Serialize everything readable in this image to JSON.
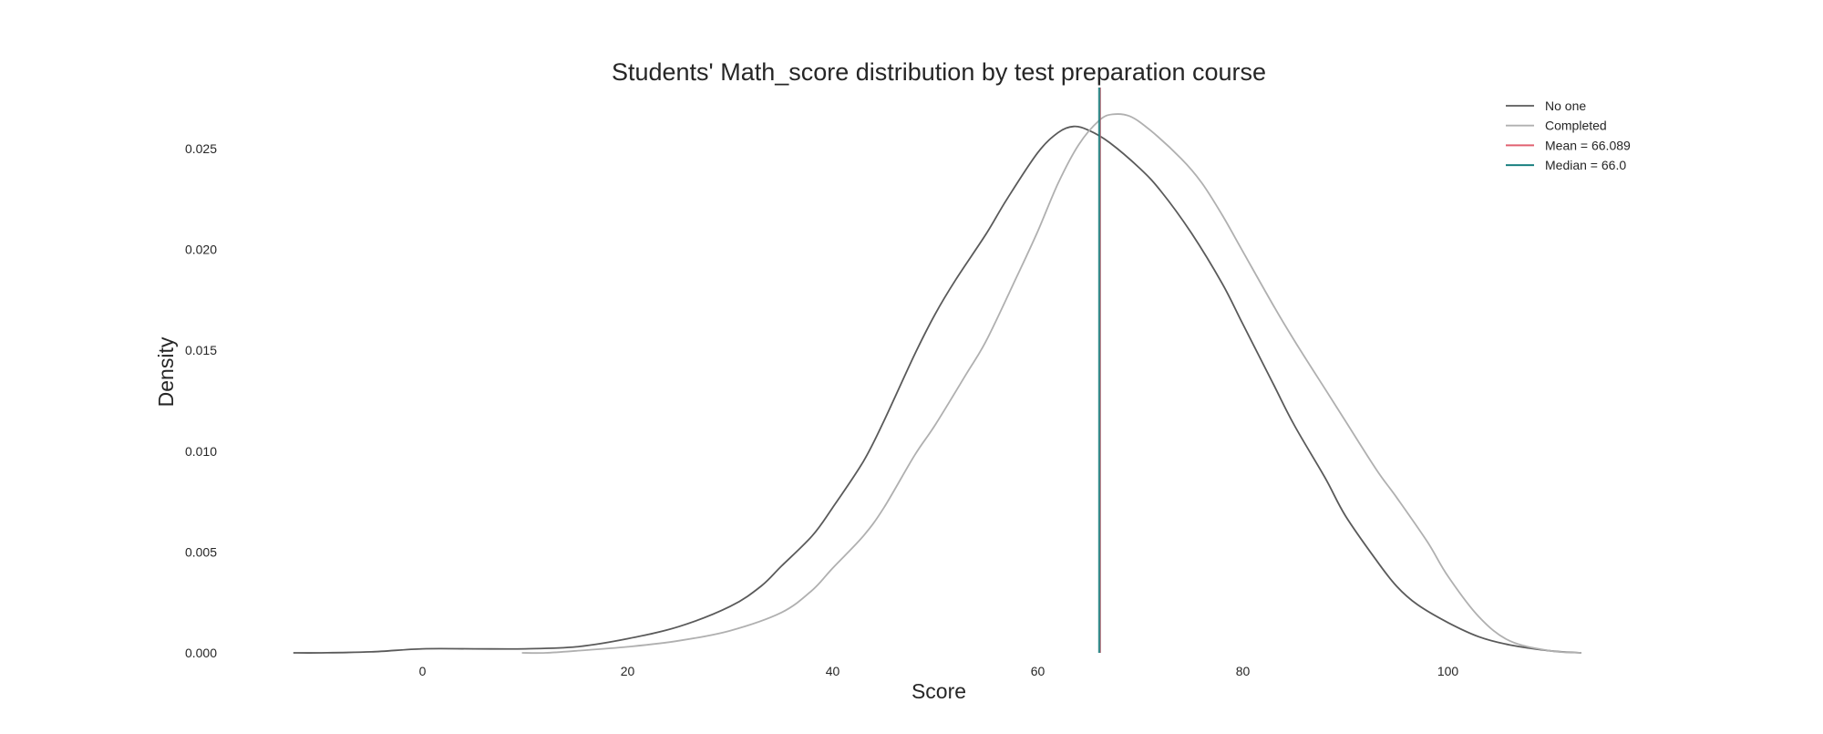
{
  "chart_data": {
    "type": "line",
    "title": "Students' Math_score distribution by test preparation course",
    "xlabel": "Score",
    "ylabel": "Density",
    "xlim": [
      -13,
      113
    ],
    "ylim": [
      0,
      0.028
    ],
    "x_ticks": [
      0,
      20,
      40,
      60,
      80,
      100
    ],
    "x_tick_labels": [
      "0",
      "20",
      "40",
      "60",
      "80",
      "100"
    ],
    "y_ticks": [
      0.0,
      0.005,
      0.01,
      0.015,
      0.02,
      0.025
    ],
    "y_tick_labels": [
      "0.000",
      "0.005",
      "0.010",
      "0.015",
      "0.020",
      "0.025"
    ],
    "grid": false,
    "legend_position": "top-right",
    "series": [
      {
        "name": "No one",
        "color": "#5a5a5a",
        "x": [
          -12.6,
          -10,
          -5,
          0,
          5,
          10,
          15,
          20,
          25,
          30,
          33,
          35,
          38,
          40,
          43,
          45,
          48,
          50,
          52,
          55,
          57,
          60,
          62,
          63.5,
          65,
          67,
          70,
          72,
          75,
          78,
          80,
          83,
          85,
          88,
          90,
          93,
          95,
          97,
          100,
          103,
          106,
          110,
          113
        ],
        "y": [
          0.0,
          0.0,
          5e-05,
          0.0002,
          0.0002,
          0.0002,
          0.0003,
          0.0007,
          0.0013,
          0.0023,
          0.0033,
          0.0043,
          0.0058,
          0.0072,
          0.0095,
          0.0115,
          0.0148,
          0.0168,
          0.0185,
          0.0208,
          0.0225,
          0.0248,
          0.0258,
          0.0261,
          0.0259,
          0.0253,
          0.024,
          0.0229,
          0.0208,
          0.0183,
          0.0163,
          0.0133,
          0.0113,
          0.0087,
          0.0068,
          0.0046,
          0.0033,
          0.0024,
          0.0015,
          0.0008,
          0.0004,
          0.0001,
          0.0
        ]
      },
      {
        "name": "Completed",
        "color": "#b0b0b0",
        "x": [
          9.7,
          12,
          15,
          20,
          25,
          30,
          35,
          38,
          40,
          43,
          45,
          48,
          50,
          53,
          55,
          58,
          60,
          62,
          64,
          66,
          67.3,
          69,
          71,
          74,
          76,
          78,
          80,
          83,
          85,
          88,
          90,
          93,
          95,
          98,
          100,
          103,
          106,
          110,
          113
        ],
        "y": [
          0.0,
          0.0,
          0.0001,
          0.0003,
          0.0006,
          0.0011,
          0.002,
          0.0031,
          0.0042,
          0.0058,
          0.0072,
          0.0098,
          0.0113,
          0.0138,
          0.0155,
          0.0187,
          0.0209,
          0.0233,
          0.0252,
          0.0264,
          0.0267,
          0.0266,
          0.0259,
          0.0245,
          0.0233,
          0.0217,
          0.0199,
          0.0172,
          0.0155,
          0.0131,
          0.0115,
          0.0091,
          0.0077,
          0.0055,
          0.0038,
          0.0018,
          0.0006,
          0.0001,
          0.0
        ]
      }
    ],
    "reference_lines": [
      {
        "label": "Mean = 66.089",
        "x": 66.089,
        "color": "#e06070"
      },
      {
        "label": "Median = 66.0",
        "x": 66.0,
        "color": "#1a8080"
      }
    ]
  }
}
